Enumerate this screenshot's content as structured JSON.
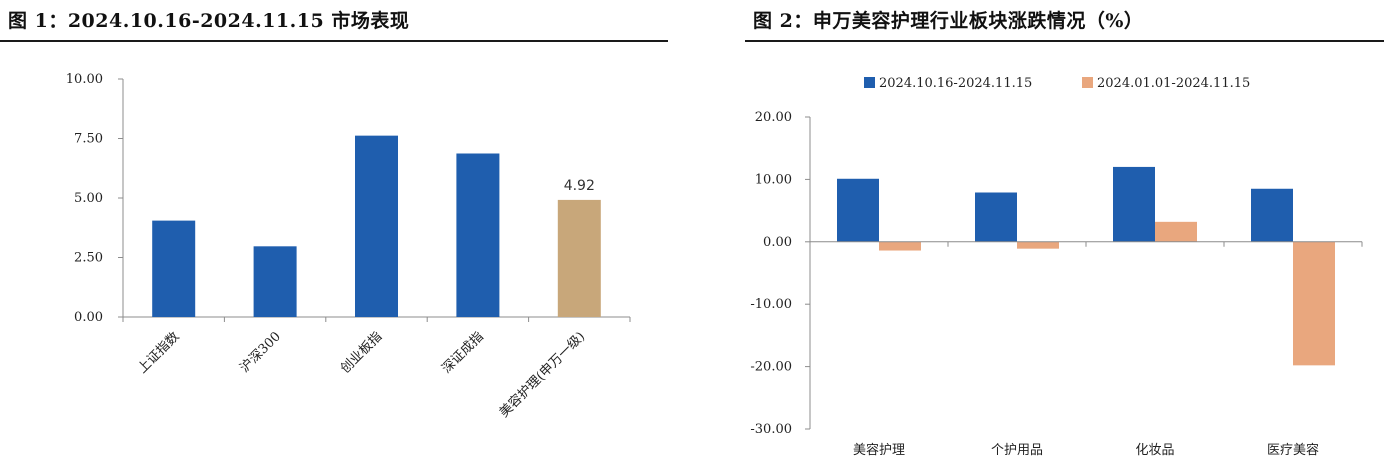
{
  "colors": {
    "blue": "#1F5EAE",
    "tan": "#C8A77A",
    "orange": "#E9A77E"
  },
  "chart_data": [
    {
      "type": "bar",
      "title": "图 1：2024.10.16-2024.11.15 市场表现",
      "categories": [
        "上证指数",
        "沪深300",
        "创业板指",
        "深证成指",
        "美容护理(申万一级)"
      ],
      "values": [
        4.05,
        2.97,
        7.62,
        6.87,
        4.92
      ],
      "yticks": [
        "0.00",
        "2.50",
        "5.00",
        "7.50",
        "10.00"
      ],
      "ylim": [
        0,
        10
      ],
      "data_labels": [
        {
          "index": 4,
          "text": "4.92"
        }
      ],
      "grid": false
    },
    {
      "type": "bar",
      "title": "图 2：申万美容护理行业板块涨跌情况（%）",
      "categories": [
        "美容护理",
        "个护用品",
        "化妆品",
        "医疗美容"
      ],
      "series": [
        {
          "name": "2024.10.16-2024.11.15",
          "values": [
            10.1,
            7.9,
            12.0,
            8.5
          ]
        },
        {
          "name": "2024.01.01-2024.11.15",
          "values": [
            -1.4,
            -1.1,
            3.2,
            -19.8
          ]
        }
      ],
      "yticks": [
        "-30.00",
        "-20.00",
        "-10.00",
        "0.00",
        "10.00",
        "20.00"
      ],
      "ylim": [
        -30,
        20
      ],
      "legend": "top",
      "grid": false
    }
  ]
}
